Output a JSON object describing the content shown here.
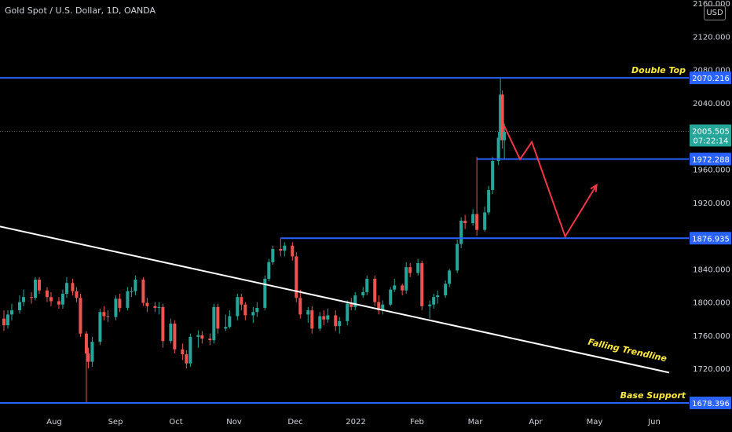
{
  "header": {
    "title": "Gold Spot / U.S. Dollar, 1D, OANDA",
    "currency": "USD"
  },
  "colors": {
    "background": "#000000",
    "level_line": "#2962ff",
    "trendline": "#ffffff",
    "projection": "#f23645",
    "annotation_text": "#ffeb3b",
    "up_candle": "#26a69a",
    "down_candle": "#ef5350",
    "price_badge": "#26a69a"
  },
  "chart_data": {
    "type": "candlestick",
    "x_ticks": [
      "Aug",
      "Sep",
      "Oct",
      "Nov",
      "Dec",
      "2022",
      "Feb",
      "Mar",
      "Apr",
      "May",
      "Jun"
    ],
    "y_ticks": [
      2160,
      2120,
      2080,
      2040,
      2000,
      1960,
      1920,
      1880,
      1840,
      1800,
      1760,
      1720
    ],
    "y_tick_labels": [
      "2160.000",
      "2120.000",
      "2080.000",
      "2040.000",
      "2000.000",
      "1960.000",
      "1920.000",
      "1880.000",
      "1840.000",
      "1800.000",
      "1760.000",
      "1720.000"
    ],
    "ylim": [
      1668,
      2164
    ],
    "xlim": [
      "2021-06-26",
      "2022-06-12"
    ],
    "levels": [
      {
        "value": 2070.216,
        "label": "2070.216",
        "annotation": "Double Top"
      },
      {
        "value": 1972.288,
        "label": "1972.288",
        "start": "2022-02-24"
      },
      {
        "value": 1876.935,
        "label": "1876.935",
        "start": "2021-11-16"
      },
      {
        "value": 1678.396,
        "label": "1678.396",
        "annotation": "Base Support"
      }
    ],
    "current_price": {
      "value": 2005.505,
      "label": "2005.505",
      "countdown": "07:22:14"
    },
    "trendline": {
      "annotation": "Falling Trendline",
      "points": [
        {
          "x": "2021-06-26",
          "y": 1891
        },
        {
          "x": "2022-06-02",
          "y": 1715
        }
      ]
    },
    "projection": [
      {
        "x": "2022-03-10",
        "y": 2012
      },
      {
        "x": "2022-03-18",
        "y": 1972
      },
      {
        "x": "2022-03-24",
        "y": 1993
      },
      {
        "x": "2022-04-10",
        "y": 1879
      },
      {
        "x": "2022-04-26",
        "y": 1941
      }
    ],
    "candles": [
      [
        "2021-06-28",
        1780,
        1772,
        1790,
        1765
      ],
      [
        "2021-06-30",
        1772,
        1785,
        1790,
        1768
      ],
      [
        "2021-07-02",
        1785,
        1790,
        1798,
        1778
      ],
      [
        "2021-07-06",
        1790,
        1800,
        1808,
        1786
      ],
      [
        "2021-07-08",
        1800,
        1806,
        1815,
        1795
      ],
      [
        "2021-07-12",
        1806,
        1805,
        1812,
        1798
      ],
      [
        "2021-07-14",
        1805,
        1827,
        1830,
        1802
      ],
      [
        "2021-07-16",
        1827,
        1814,
        1830,
        1810
      ],
      [
        "2021-07-20",
        1814,
        1806,
        1818,
        1800
      ],
      [
        "2021-07-22",
        1806,
        1801,
        1812,
        1795
      ],
      [
        "2021-07-26",
        1801,
        1797,
        1806,
        1792
      ],
      [
        "2021-07-28",
        1797,
        1810,
        1815,
        1792
      ],
      [
        "2021-07-30",
        1810,
        1823,
        1830,
        1805
      ],
      [
        "2021-08-02",
        1823,
        1813,
        1828,
        1808
      ],
      [
        "2021-08-04",
        1813,
        1805,
        1818,
        1800
      ],
      [
        "2021-08-06",
        1805,
        1762,
        1810,
        1758
      ],
      [
        "2021-08-09",
        1762,
        1738,
        1765,
        1678
      ],
      [
        "2021-08-10",
        1738,
        1728,
        1745,
        1720
      ],
      [
        "2021-08-12",
        1728,
        1752,
        1758,
        1722
      ],
      [
        "2021-08-16",
        1752,
        1788,
        1792,
        1748
      ],
      [
        "2021-08-18",
        1788,
        1783,
        1795,
        1778
      ],
      [
        "2021-08-20",
        1783,
        1782,
        1790,
        1776
      ],
      [
        "2021-08-24",
        1782,
        1804,
        1808,
        1778
      ],
      [
        "2021-08-26",
        1804,
        1793,
        1810,
        1788
      ],
      [
        "2021-08-30",
        1793,
        1813,
        1818,
        1790
      ],
      [
        "2021-09-01",
        1813,
        1813,
        1818,
        1806
      ],
      [
        "2021-09-03",
        1813,
        1827,
        1832,
        1808
      ],
      [
        "2021-09-07",
        1827,
        1799,
        1830,
        1795
      ],
      [
        "2021-09-09",
        1799,
        1795,
        1805,
        1788
      ],
      [
        "2021-09-13",
        1795,
        1793,
        1800,
        1788
      ],
      [
        "2021-09-15",
        1793,
        1794,
        1800,
        1785
      ],
      [
        "2021-09-17",
        1794,
        1753,
        1798,
        1745
      ],
      [
        "2021-09-21",
        1753,
        1774,
        1780,
        1750
      ],
      [
        "2021-09-23",
        1774,
        1743,
        1778,
        1738
      ],
      [
        "2021-09-27",
        1743,
        1737,
        1750,
        1730
      ],
      [
        "2021-09-29",
        1737,
        1726,
        1742,
        1720
      ],
      [
        "2021-10-01",
        1726,
        1758,
        1762,
        1722
      ],
      [
        "2021-10-05",
        1758,
        1760,
        1766,
        1745
      ],
      [
        "2021-10-07",
        1760,
        1756,
        1765,
        1750
      ],
      [
        "2021-10-11",
        1756,
        1754,
        1762,
        1748
      ],
      [
        "2021-10-13",
        1754,
        1794,
        1798,
        1750
      ],
      [
        "2021-10-15",
        1794,
        1768,
        1798,
        1762
      ],
      [
        "2021-10-19",
        1768,
        1770,
        1785,
        1765
      ],
      [
        "2021-10-21",
        1770,
        1783,
        1790,
        1768
      ],
      [
        "2021-10-25",
        1783,
        1806,
        1810,
        1778
      ],
      [
        "2021-10-27",
        1806,
        1797,
        1810,
        1790
      ],
      [
        "2021-10-29",
        1797,
        1784,
        1800,
        1778
      ],
      [
        "2021-11-02",
        1784,
        1788,
        1794,
        1775
      ],
      [
        "2021-11-04",
        1788,
        1793,
        1800,
        1782
      ],
      [
        "2021-11-08",
        1793,
        1828,
        1832,
        1790
      ],
      [
        "2021-11-10",
        1828,
        1848,
        1852,
        1825
      ],
      [
        "2021-11-12",
        1848,
        1864,
        1868,
        1845
      ],
      [
        "2021-11-16",
        1864,
        1862,
        1877,
        1855
      ],
      [
        "2021-11-18",
        1862,
        1868,
        1872,
        1855
      ],
      [
        "2021-11-22",
        1868,
        1855,
        1872,
        1850
      ],
      [
        "2021-11-24",
        1855,
        1805,
        1860,
        1800
      ],
      [
        "2021-11-26",
        1805,
        1785,
        1815,
        1780
      ],
      [
        "2021-11-30",
        1785,
        1790,
        1794,
        1775
      ],
      [
        "2021-12-02",
        1790,
        1768,
        1795,
        1762
      ],
      [
        "2021-12-06",
        1768,
        1783,
        1788,
        1765
      ],
      [
        "2021-12-08",
        1783,
        1779,
        1790,
        1772
      ],
      [
        "2021-12-10",
        1779,
        1784,
        1792,
        1775
      ],
      [
        "2021-12-14",
        1784,
        1771,
        1790,
        1765
      ],
      [
        "2021-12-16",
        1771,
        1777,
        1782,
        1762
      ],
      [
        "2021-12-20",
        1777,
        1798,
        1802,
        1772
      ],
      [
        "2021-12-22",
        1798,
        1794,
        1805,
        1790
      ],
      [
        "2021-12-24",
        1794,
        1808,
        1812,
        1790
      ],
      [
        "2021-12-28",
        1808,
        1812,
        1818,
        1805
      ],
      [
        "2021-12-30",
        1812,
        1828,
        1832,
        1808
      ],
      [
        "2022-01-03",
        1828,
        1800,
        1832,
        1795
      ],
      [
        "2022-01-05",
        1800,
        1790,
        1808,
        1785
      ],
      [
        "2022-01-07",
        1790,
        1797,
        1802,
        1785
      ],
      [
        "2022-01-11",
        1797,
        1815,
        1818,
        1795
      ],
      [
        "2022-01-13",
        1815,
        1820,
        1828,
        1812
      ],
      [
        "2022-01-17",
        1820,
        1814,
        1822,
        1808
      ],
      [
        "2022-01-19",
        1814,
        1842,
        1848,
        1810
      ],
      [
        "2022-01-21",
        1842,
        1835,
        1847,
        1830
      ],
      [
        "2022-01-25",
        1835,
        1847,
        1852,
        1832
      ],
      [
        "2022-01-27",
        1847,
        1795,
        1850,
        1790
      ],
      [
        "2022-01-31",
        1795,
        1797,
        1802,
        1780
      ],
      [
        "2022-02-02",
        1797,
        1806,
        1810,
        1792
      ],
      [
        "2022-02-04",
        1806,
        1808,
        1814,
        1798
      ],
      [
        "2022-02-08",
        1808,
        1822,
        1826,
        1805
      ],
      [
        "2022-02-10",
        1822,
        1838,
        1840,
        1818
      ],
      [
        "2022-02-14",
        1838,
        1870,
        1875,
        1835
      ],
      [
        "2022-02-16",
        1870,
        1898,
        1902,
        1865
      ],
      [
        "2022-02-18",
        1898,
        1895,
        1905,
        1888
      ],
      [
        "2022-02-22",
        1895,
        1906,
        1912,
        1892
      ],
      [
        "2022-02-24",
        1906,
        1887,
        1975,
        1880
      ],
      [
        "2022-02-28",
        1887,
        1908,
        1915,
        1885
      ],
      [
        "2022-03-02",
        1908,
        1935,
        1940,
        1905
      ],
      [
        "2022-03-04",
        1935,
        1970,
        1975,
        1930
      ],
      [
        "2022-03-07",
        1970,
        1998,
        2005,
        1965
      ],
      [
        "2022-03-08",
        1998,
        2050,
        2070,
        1995
      ],
      [
        "2022-03-09",
        2050,
        1995,
        2055,
        1985
      ],
      [
        "2022-03-10",
        1995,
        2005,
        2015,
        1972
      ]
    ]
  }
}
